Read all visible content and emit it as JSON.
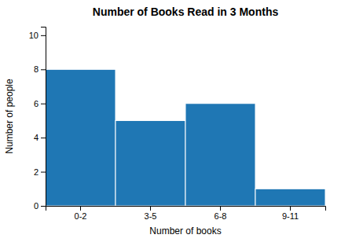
{
  "chart_data": {
    "type": "bar",
    "title": "Number of Books Read in 3 Months",
    "xlabel": "Number of books",
    "ylabel": "Number of people",
    "categories": [
      "0-2",
      "3-5",
      "6-8",
      "9-11"
    ],
    "values": [
      8,
      5,
      6,
      1
    ],
    "ylim": [
      0,
      10.5
    ],
    "yticks": [
      0,
      2,
      4,
      6,
      8,
      10
    ],
    "grid": false
  }
}
